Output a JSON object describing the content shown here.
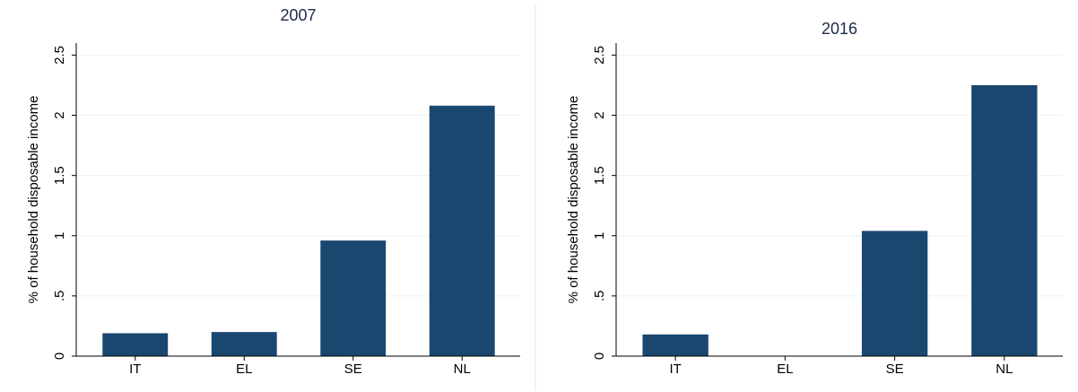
{
  "chart_data": [
    {
      "type": "bar",
      "title": "2007",
      "y_label": "% of household disposable income",
      "categories": [
        "IT",
        "EL",
        "SE",
        "NL"
      ],
      "values": [
        0.19,
        0.2,
        0.96,
        2.08
      ],
      "color": "#1a476f",
      "ylim": [
        0,
        2.6
      ],
      "yticks": [
        0,
        {
          "value": 0.5,
          "label": ".5"
        },
        1,
        1.5,
        2,
        2.5
      ],
      "grid": true
    },
    {
      "type": "bar",
      "title": "2016",
      "y_label": "% of household disposable income",
      "categories": [
        "IT",
        "EL",
        "SE",
        "NL"
      ],
      "values": [
        0.18,
        0,
        1.04,
        2.25
      ],
      "color": "#1a476f",
      "ylim": [
        0,
        2.6
      ],
      "yticks": [
        0,
        {
          "value": 0.5,
          "label": ".5"
        },
        1,
        1.5,
        2,
        2.5
      ],
      "grid": true
    }
  ]
}
